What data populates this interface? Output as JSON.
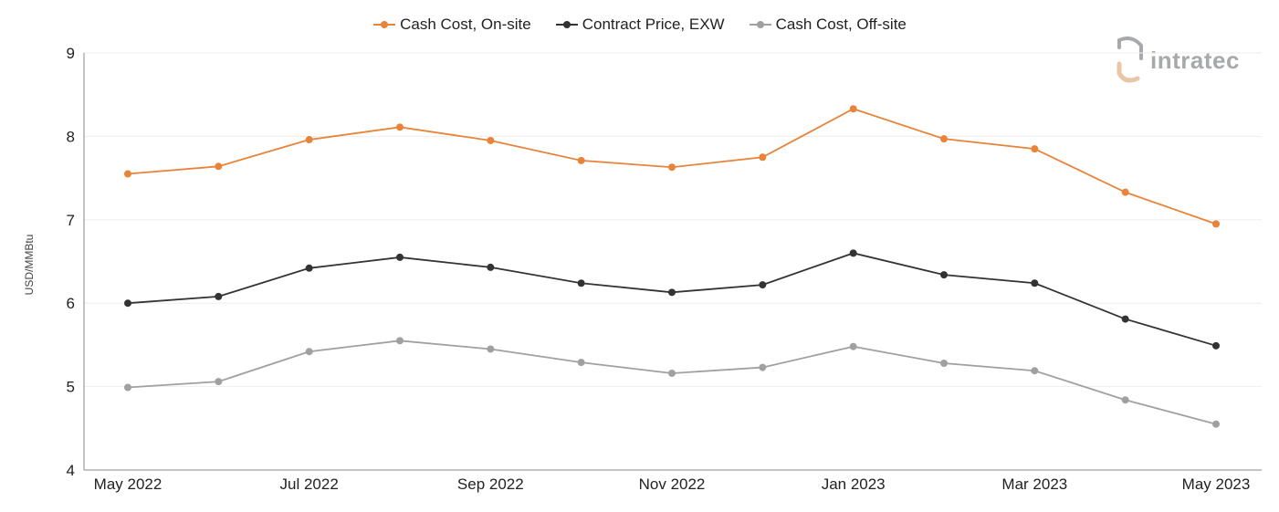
{
  "logo": {
    "text": "intratec"
  },
  "chart_data": {
    "type": "line",
    "title": "",
    "xlabel": "",
    "ylabel": "USD/MMBtu",
    "ylim": [
      4,
      9
    ],
    "yticks": [
      "4",
      "5",
      "6",
      "7",
      "8",
      "9"
    ],
    "grid": true,
    "legend_position": "top-center",
    "categories": [
      "May 2022",
      "Jun 2022",
      "Jul 2022",
      "Aug 2022",
      "Sep 2022",
      "Oct 2022",
      "Nov 2022",
      "Dec 2022",
      "Jan 2023",
      "Feb 2023",
      "Mar 2023",
      "Apr 2023",
      "May 2023"
    ],
    "xtick_labels": [
      "May 2022",
      "",
      "Jul 2022",
      "",
      "Sep 2022",
      "",
      "Nov 2022",
      "",
      "Jan 2023",
      "",
      "Mar 2023",
      "",
      "May 2023"
    ],
    "series": [
      {
        "name": "Cash Cost, On-site",
        "color": "#e8833a",
        "values": [
          7.55,
          7.64,
          7.96,
          8.11,
          7.95,
          7.71,
          7.63,
          7.75,
          8.33,
          7.97,
          7.85,
          7.33,
          6.95
        ]
      },
      {
        "name": "Contract Price, EXW",
        "color": "#333333",
        "values": [
          6.0,
          6.08,
          6.42,
          6.55,
          6.43,
          6.24,
          6.13,
          6.22,
          6.6,
          6.34,
          6.24,
          5.81,
          5.49
        ]
      },
      {
        "name": "Cash Cost, Off-site",
        "color": "#a0a0a0",
        "values": [
          4.99,
          5.06,
          5.42,
          5.55,
          5.45,
          5.29,
          5.16,
          5.23,
          5.48,
          5.28,
          5.19,
          4.84,
          4.55
        ]
      }
    ]
  }
}
